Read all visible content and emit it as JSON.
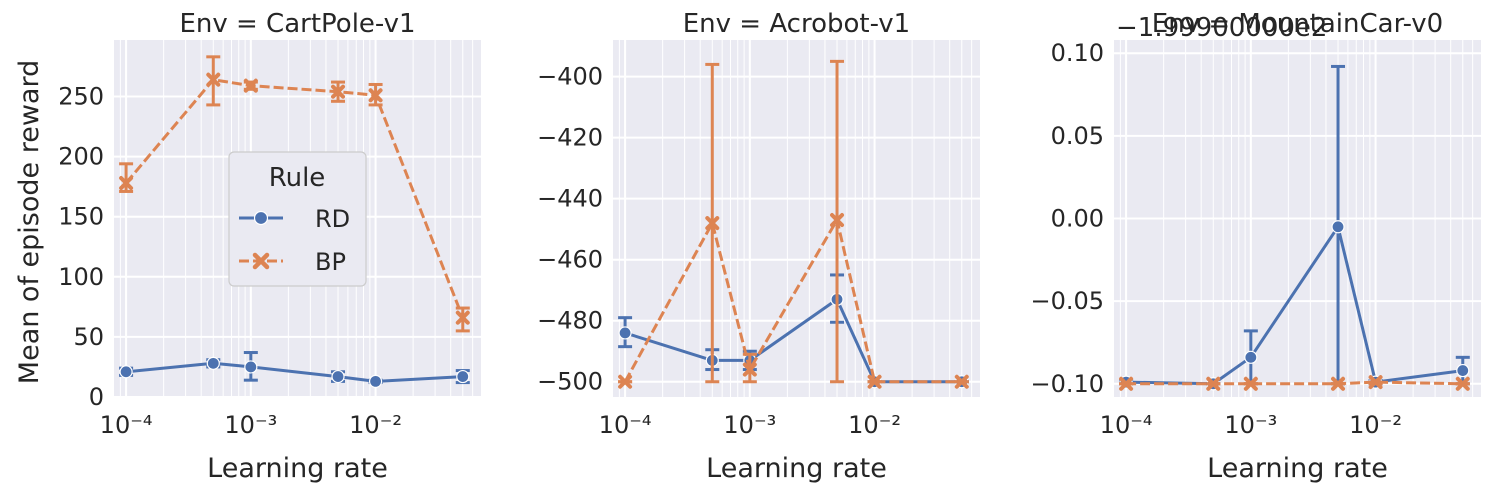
{
  "figure": {
    "xlabel": "Learning rate",
    "ylabel": "Mean of episode reward",
    "colors": {
      "RD": "#4c72b0",
      "BP": "#dd8452",
      "background": "#eaeaf2",
      "grid": "#ffffff"
    }
  },
  "legend": {
    "title": "Rule",
    "entries": [
      {
        "name": "RD",
        "marker": "circle",
        "dash": "solid"
      },
      {
        "name": "BP",
        "marker": "x",
        "dash": "dashed"
      }
    ]
  },
  "chart_data": [
    {
      "type": "line",
      "title": "Env = CartPole-v1",
      "xscale": "log",
      "xlim": [
        8e-05,
        0.07
      ],
      "ylim": [
        0,
        297
      ],
      "yticks": [
        0,
        50,
        100,
        150,
        200,
        250
      ],
      "ytick_labels": [
        "0",
        "50",
        "100",
        "150",
        "200",
        "250"
      ],
      "xticks": [
        0.0001,
        0.001,
        0.01
      ],
      "xtick_labels": [
        "10⁻⁴",
        "10⁻³",
        "10⁻²"
      ],
      "legend_position": "center",
      "series": [
        {
          "name": "RD",
          "x": [
            0.0001,
            0.0005,
            0.001,
            0.005,
            0.01,
            0.05
          ],
          "y": [
            21,
            28,
            25,
            17,
            13,
            17
          ],
          "err_low": [
            18,
            25,
            14,
            13,
            12,
            12
          ],
          "err_high": [
            24,
            31,
            37,
            21,
            14,
            22
          ]
        },
        {
          "name": "BP",
          "x": [
            0.0001,
            0.0005,
            0.001,
            0.005,
            0.01,
            0.05
          ],
          "y": [
            178,
            264,
            259,
            254,
            251,
            66
          ],
          "err_low": [
            171,
            243,
            256,
            246,
            243,
            55
          ],
          "err_high": [
            194,
            283,
            262,
            262,
            260,
            74
          ]
        }
      ]
    },
    {
      "type": "line",
      "title": "Env = Acrobot-v1",
      "xscale": "log",
      "xlim": [
        8e-05,
        0.07
      ],
      "ylim": [
        -505,
        -388
      ],
      "yticks": [
        -500,
        -480,
        -460,
        -440,
        -420,
        -400
      ],
      "ytick_labels": [
        "−500",
        "−480",
        "−460",
        "−440",
        "−420",
        "−400"
      ],
      "xticks": [
        0.0001,
        0.001,
        0.01
      ],
      "xtick_labels": [
        "10⁻⁴",
        "10⁻³",
        "10⁻²"
      ],
      "series": [
        {
          "name": "RD",
          "x": [
            0.0001,
            0.0005,
            0.001,
            0.005,
            0.01,
            0.05
          ],
          "y": [
            -484,
            -493,
            -493,
            -473,
            -500,
            -500
          ],
          "err_low": [
            -488.5,
            -496,
            -496,
            -480.5,
            -500,
            -500
          ],
          "err_high": [
            -479,
            -489.5,
            -490,
            -465,
            -500,
            -500
          ]
        },
        {
          "name": "BP",
          "x": [
            0.0001,
            0.0005,
            0.001,
            0.005,
            0.01,
            0.05
          ],
          "y": [
            -500,
            -448,
            -496,
            -447,
            -500,
            -500
          ],
          "err_low": [
            -500,
            -500,
            -500,
            -500,
            -500,
            -500
          ],
          "err_high": [
            -500,
            -396,
            -491,
            -395,
            -500,
            -500
          ]
        }
      ]
    },
    {
      "type": "line",
      "title": "Env = MountainCar-v0",
      "offset_label": "−1.99900000e2",
      "xscale": "log",
      "xlim": [
        8e-05,
        0.07
      ],
      "ylim": [
        -0.108,
        0.108
      ],
      "yticks": [
        -0.1,
        -0.05,
        0.0,
        0.05,
        0.1
      ],
      "ytick_labels": [
        "−0.10",
        "−0.05",
        "0.00",
        "0.05",
        "0.10"
      ],
      "xticks": [
        0.0001,
        0.001,
        0.01
      ],
      "xtick_labels": [
        "10⁻⁴",
        "10⁻³",
        "10⁻²"
      ],
      "series": [
        {
          "name": "RD",
          "x": [
            0.0001,
            0.0005,
            0.001,
            0.005,
            0.01,
            0.05
          ],
          "y": [
            -0.099,
            -0.1,
            -0.084,
            -0.005,
            -0.099,
            -0.092
          ],
          "err_low": [
            -0.1,
            -0.1,
            -0.1,
            -0.1,
            -0.1,
            -0.1
          ],
          "err_high": [
            -0.098,
            -0.1,
            -0.068,
            0.092,
            -0.098,
            -0.084
          ]
        },
        {
          "name": "BP",
          "x": [
            0.0001,
            0.0005,
            0.001,
            0.005,
            0.01,
            0.05
          ],
          "y": [
            -0.1,
            -0.1,
            -0.1,
            -0.1,
            -0.099,
            -0.1
          ],
          "err_low": [
            -0.1,
            -0.1,
            -0.1,
            -0.1,
            -0.1,
            -0.1
          ],
          "err_high": [
            -0.1,
            -0.1,
            -0.1,
            -0.1,
            -0.099,
            -0.1
          ]
        }
      ]
    }
  ]
}
